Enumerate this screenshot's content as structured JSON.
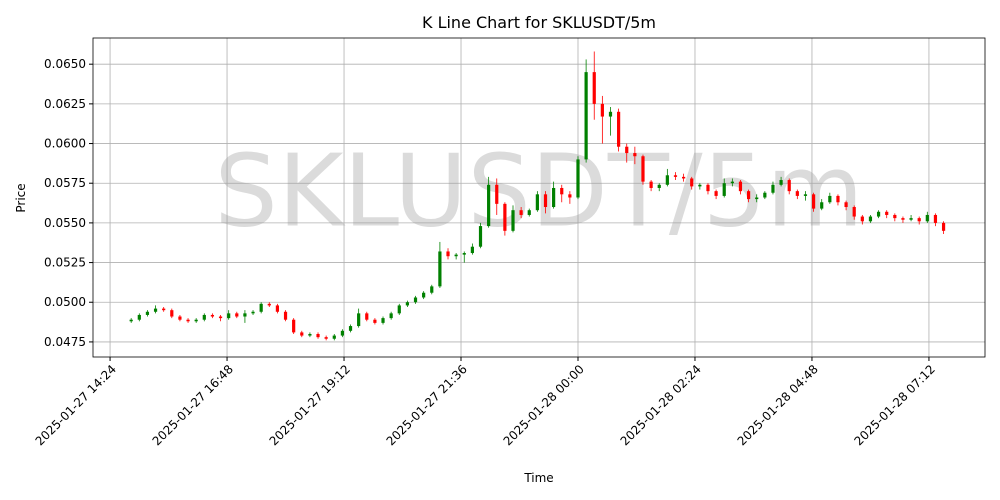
{
  "chart_data": {
    "type": "candlestick",
    "title": "K Line Chart for SKLUSDT/5m",
    "watermark": "SKLUSDT/5m",
    "x_label": "Time",
    "y_label": "Price",
    "grid": true,
    "up_color": "#008000",
    "down_color": "#ff0000",
    "xlim": [
      "2025-01-27 14:03",
      "2025-01-28 08:21"
    ],
    "xticks": [
      "2025-01-27 14:24",
      "2025-01-27 16:48",
      "2025-01-27 19:12",
      "2025-01-27 21:36",
      "2025-01-28 00:00",
      "2025-01-28 02:24",
      "2025-01-28 04:48",
      "2025-01-28 07:12"
    ],
    "ylim": [
      0.04655,
      0.06665
    ],
    "yticks": [
      {
        "value": 0.0475,
        "label": "0.0475"
      },
      {
        "value": 0.05,
        "label": "0.0500"
      },
      {
        "value": 0.0525,
        "label": "0.0525"
      },
      {
        "value": 0.055,
        "label": "0.0550"
      },
      {
        "value": 0.0575,
        "label": "0.0575"
      },
      {
        "value": 0.06,
        "label": "0.0600"
      },
      {
        "value": 0.0625,
        "label": "0.0625"
      },
      {
        "value": 0.065,
        "label": "0.0650"
      }
    ],
    "x": [
      "2025-01-27 14:50",
      "2025-01-27 15:00",
      "2025-01-27 15:10",
      "2025-01-27 15:20",
      "2025-01-27 15:30",
      "2025-01-27 15:40",
      "2025-01-27 15:50",
      "2025-01-27 16:00",
      "2025-01-27 16:10",
      "2025-01-27 16:20",
      "2025-01-27 16:30",
      "2025-01-27 16:40",
      "2025-01-27 16:50",
      "2025-01-27 17:00",
      "2025-01-27 17:10",
      "2025-01-27 17:20",
      "2025-01-27 17:30",
      "2025-01-27 17:40",
      "2025-01-27 17:50",
      "2025-01-27 18:00",
      "2025-01-27 18:10",
      "2025-01-27 18:20",
      "2025-01-27 18:30",
      "2025-01-27 18:40",
      "2025-01-27 18:50",
      "2025-01-27 19:00",
      "2025-01-27 19:10",
      "2025-01-27 19:20",
      "2025-01-27 19:30",
      "2025-01-27 19:40",
      "2025-01-27 19:50",
      "2025-01-27 20:00",
      "2025-01-27 20:10",
      "2025-01-27 20:20",
      "2025-01-27 20:30",
      "2025-01-27 20:40",
      "2025-01-27 20:50",
      "2025-01-27 21:00",
      "2025-01-27 21:10",
      "2025-01-27 21:20",
      "2025-01-27 21:30",
      "2025-01-27 21:40",
      "2025-01-27 21:50",
      "2025-01-27 22:00",
      "2025-01-27 22:10",
      "2025-01-27 22:20",
      "2025-01-27 22:30",
      "2025-01-27 22:40",
      "2025-01-27 22:50",
      "2025-01-27 23:00",
      "2025-01-27 23:10",
      "2025-01-27 23:20",
      "2025-01-27 23:30",
      "2025-01-27 23:40",
      "2025-01-27 23:50",
      "2025-01-28 00:00",
      "2025-01-28 00:10",
      "2025-01-28 00:20",
      "2025-01-28 00:30",
      "2025-01-28 00:40",
      "2025-01-28 00:50",
      "2025-01-28 01:00",
      "2025-01-28 01:10",
      "2025-01-28 01:20",
      "2025-01-28 01:30",
      "2025-01-28 01:40",
      "2025-01-28 01:50",
      "2025-01-28 02:00",
      "2025-01-28 02:10",
      "2025-01-28 02:20",
      "2025-01-28 02:30",
      "2025-01-28 02:40",
      "2025-01-28 02:50",
      "2025-01-28 03:00",
      "2025-01-28 03:10",
      "2025-01-28 03:20",
      "2025-01-28 03:30",
      "2025-01-28 03:40",
      "2025-01-28 03:50",
      "2025-01-28 04:00",
      "2025-01-28 04:10",
      "2025-01-28 04:20",
      "2025-01-28 04:30",
      "2025-01-28 04:40",
      "2025-01-28 04:50",
      "2025-01-28 05:00",
      "2025-01-28 05:10",
      "2025-01-28 05:20",
      "2025-01-28 05:30",
      "2025-01-28 05:40",
      "2025-01-28 05:50",
      "2025-01-28 06:00",
      "2025-01-28 06:10",
      "2025-01-28 06:20",
      "2025-01-28 06:30",
      "2025-01-28 06:40",
      "2025-01-28 06:50",
      "2025-01-28 07:00",
      "2025-01-28 07:10",
      "2025-01-28 07:20",
      "2025-01-28 07:30"
    ],
    "open": [
      0.0488,
      0.0489,
      0.0492,
      0.0494,
      0.0496,
      0.0495,
      0.0491,
      0.0489,
      0.0488,
      0.0489,
      0.0492,
      0.0491,
      0.049,
      0.0493,
      0.0491,
      0.0493,
      0.0494,
      0.0499,
      0.0498,
      0.0494,
      0.0489,
      0.0481,
      0.0479,
      0.048,
      0.0478,
      0.0477,
      0.0479,
      0.0482,
      0.0485,
      0.0493,
      0.0489,
      0.0487,
      0.049,
      0.0493,
      0.0498,
      0.05,
      0.0503,
      0.0506,
      0.051,
      0.0532,
      0.0529,
      0.053,
      0.0531,
      0.0535,
      0.0548,
      0.0574,
      0.0562,
      0.0545,
      0.0558,
      0.0555,
      0.0558,
      0.0568,
      0.056,
      0.0572,
      0.0568,
      0.0566,
      0.059,
      0.0645,
      0.0625,
      0.0617,
      0.062,
      0.0598,
      0.0594,
      0.0592,
      0.0576,
      0.0572,
      0.0574,
      0.058,
      0.0579,
      0.0578,
      0.0573,
      0.0574,
      0.057,
      0.0567,
      0.0575,
      0.0576,
      0.057,
      0.0565,
      0.0566,
      0.0569,
      0.0574,
      0.0577,
      0.057,
      0.0567,
      0.0568,
      0.0559,
      0.0563,
      0.0567,
      0.0563,
      0.056,
      0.0554,
      0.0551,
      0.0554,
      0.0557,
      0.0555,
      0.0553,
      0.0552,
      0.0553,
      0.0551,
      0.0555,
      0.055
    ],
    "high": [
      0.049,
      0.0493,
      0.0495,
      0.0498,
      0.0497,
      0.0496,
      0.0492,
      0.049,
      0.049,
      0.0493,
      0.0493,
      0.0492,
      0.0495,
      0.0494,
      0.0495,
      0.0495,
      0.05,
      0.05,
      0.0499,
      0.0495,
      0.049,
      0.0482,
      0.0481,
      0.0481,
      0.0479,
      0.048,
      0.0483,
      0.0486,
      0.0496,
      0.0494,
      0.049,
      0.0491,
      0.0494,
      0.0499,
      0.0501,
      0.0504,
      0.0507,
      0.0511,
      0.0538,
      0.0534,
      0.0531,
      0.0532,
      0.0537,
      0.055,
      0.0579,
      0.0578,
      0.0563,
      0.0561,
      0.056,
      0.0559,
      0.057,
      0.057,
      0.0576,
      0.0574,
      0.057,
      0.0592,
      0.0653,
      0.0658,
      0.063,
      0.0623,
      0.0622,
      0.06,
      0.0598,
      0.0593,
      0.0577,
      0.0575,
      0.0584,
      0.0582,
      0.0581,
      0.0579,
      0.0575,
      0.0575,
      0.0571,
      0.0578,
      0.0578,
      0.0577,
      0.0571,
      0.0568,
      0.057,
      0.0576,
      0.0579,
      0.0578,
      0.0571,
      0.057,
      0.0569,
      0.0565,
      0.0569,
      0.0568,
      0.0564,
      0.0561,
      0.0555,
      0.0555,
      0.0558,
      0.0558,
      0.0556,
      0.0554,
      0.0555,
      0.0554,
      0.0557,
      0.0556,
      0.0551
    ],
    "low": [
      0.0487,
      0.0488,
      0.0491,
      0.0493,
      0.0494,
      0.049,
      0.0488,
      0.0487,
      0.0487,
      0.0488,
      0.049,
      0.0488,
      0.0489,
      0.049,
      0.0487,
      0.0492,
      0.0493,
      0.0497,
      0.0493,
      0.0488,
      0.048,
      0.0478,
      0.0478,
      0.0477,
      0.0476,
      0.0476,
      0.0478,
      0.0481,
      0.0484,
      0.0488,
      0.0486,
      0.0486,
      0.0489,
      0.0492,
      0.0497,
      0.0499,
      0.0502,
      0.0505,
      0.0509,
      0.0527,
      0.0527,
      0.0525,
      0.053,
      0.0534,
      0.0547,
      0.0555,
      0.0542,
      0.0544,
      0.0553,
      0.0554,
      0.0557,
      0.0556,
      0.0559,
      0.0563,
      0.0562,
      0.0565,
      0.0588,
      0.0615,
      0.06,
      0.0605,
      0.0595,
      0.0588,
      0.0587,
      0.0574,
      0.057,
      0.057,
      0.0573,
      0.0577,
      0.0576,
      0.0571,
      0.0571,
      0.0568,
      0.0565,
      0.0566,
      0.0573,
      0.0568,
      0.0563,
      0.0563,
      0.0565,
      0.0568,
      0.0573,
      0.0568,
      0.0565,
      0.0564,
      0.0557,
      0.0558,
      0.0562,
      0.0561,
      0.0558,
      0.0552,
      0.0549,
      0.055,
      0.0553,
      0.0553,
      0.0551,
      0.055,
      0.0551,
      0.0549,
      0.055,
      0.0548,
      0.0543
    ],
    "close": [
      0.0489,
      0.0492,
      0.0494,
      0.0496,
      0.0495,
      0.0491,
      0.0489,
      0.0488,
      0.0489,
      0.0492,
      0.0491,
      0.049,
      0.0493,
      0.0491,
      0.0493,
      0.0494,
      0.0499,
      0.0498,
      0.0494,
      0.0489,
      0.0481,
      0.0479,
      0.048,
      0.0478,
      0.0477,
      0.0479,
      0.0482,
      0.0485,
      0.0493,
      0.0489,
      0.0487,
      0.049,
      0.0493,
      0.0498,
      0.05,
      0.0503,
      0.0506,
      0.051,
      0.0532,
      0.0529,
      0.053,
      0.0531,
      0.0535,
      0.0548,
      0.0574,
      0.0562,
      0.0545,
      0.0558,
      0.0555,
      0.0558,
      0.0568,
      0.056,
      0.0572,
      0.0568,
      0.0566,
      0.059,
      0.0645,
      0.0625,
      0.0617,
      0.062,
      0.0598,
      0.0594,
      0.0592,
      0.0576,
      0.0572,
      0.0574,
      0.058,
      0.0579,
      0.0578,
      0.0573,
      0.0574,
      0.057,
      0.0567,
      0.0575,
      0.0576,
      0.057,
      0.0565,
      0.0566,
      0.0569,
      0.0574,
      0.0577,
      0.057,
      0.0567,
      0.0568,
      0.0559,
      0.0563,
      0.0567,
      0.0563,
      0.056,
      0.0554,
      0.0551,
      0.0554,
      0.0557,
      0.0555,
      0.0553,
      0.0552,
      0.0553,
      0.0551,
      0.0555,
      0.055,
      0.0545
    ]
  }
}
